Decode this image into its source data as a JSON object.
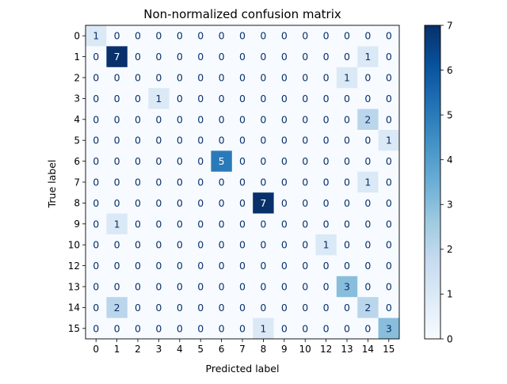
{
  "chart_data": {
    "type": "heatmap",
    "title": "Non-normalized confusion matrix",
    "xlabel": "Predicted label",
    "ylabel": "True label",
    "x_categories": [
      "0",
      "1",
      "2",
      "3",
      "4",
      "5",
      "6",
      "7",
      "8",
      "9",
      "10",
      "12",
      "13",
      "14",
      "15"
    ],
    "y_categories": [
      "0",
      "1",
      "2",
      "3",
      "4",
      "5",
      "6",
      "7",
      "8",
      "9",
      "10",
      "12",
      "13",
      "14",
      "15"
    ],
    "matrix": [
      [
        1,
        0,
        0,
        0,
        0,
        0,
        0,
        0,
        0,
        0,
        0,
        0,
        0,
        0,
        0
      ],
      [
        0,
        7,
        0,
        0,
        0,
        0,
        0,
        0,
        0,
        0,
        0,
        0,
        0,
        1,
        0
      ],
      [
        0,
        0,
        0,
        0,
        0,
        0,
        0,
        0,
        0,
        0,
        0,
        0,
        1,
        0,
        0
      ],
      [
        0,
        0,
        0,
        1,
        0,
        0,
        0,
        0,
        0,
        0,
        0,
        0,
        0,
        0,
        0
      ],
      [
        0,
        0,
        0,
        0,
        0,
        0,
        0,
        0,
        0,
        0,
        0,
        0,
        0,
        2,
        0
      ],
      [
        0,
        0,
        0,
        0,
        0,
        0,
        0,
        0,
        0,
        0,
        0,
        0,
        0,
        0,
        1
      ],
      [
        0,
        0,
        0,
        0,
        0,
        0,
        5,
        0,
        0,
        0,
        0,
        0,
        0,
        0,
        0
      ],
      [
        0,
        0,
        0,
        0,
        0,
        0,
        0,
        0,
        0,
        0,
        0,
        0,
        0,
        1,
        0
      ],
      [
        0,
        0,
        0,
        0,
        0,
        0,
        0,
        0,
        7,
        0,
        0,
        0,
        0,
        0,
        0
      ],
      [
        0,
        1,
        0,
        0,
        0,
        0,
        0,
        0,
        0,
        0,
        0,
        0,
        0,
        0,
        0
      ],
      [
        0,
        0,
        0,
        0,
        0,
        0,
        0,
        0,
        0,
        0,
        0,
        1,
        0,
        0,
        0
      ],
      [
        0,
        0,
        0,
        0,
        0,
        0,
        0,
        0,
        0,
        0,
        0,
        0,
        0,
        0,
        0
      ],
      [
        0,
        0,
        0,
        0,
        0,
        0,
        0,
        0,
        0,
        0,
        0,
        0,
        3,
        0,
        0
      ],
      [
        0,
        2,
        0,
        0,
        0,
        0,
        0,
        0,
        0,
        0,
        0,
        0,
        0,
        2,
        0
      ],
      [
        0,
        0,
        0,
        0,
        0,
        0,
        0,
        0,
        1,
        0,
        0,
        0,
        0,
        0,
        3
      ]
    ],
    "vmin": 0,
    "vmax": 7,
    "colormap": "Blues",
    "colorbar_ticks": [
      "0",
      "1",
      "2",
      "3",
      "4",
      "5",
      "6",
      "7"
    ],
    "grid": false,
    "legend": "colorbar-right"
  }
}
